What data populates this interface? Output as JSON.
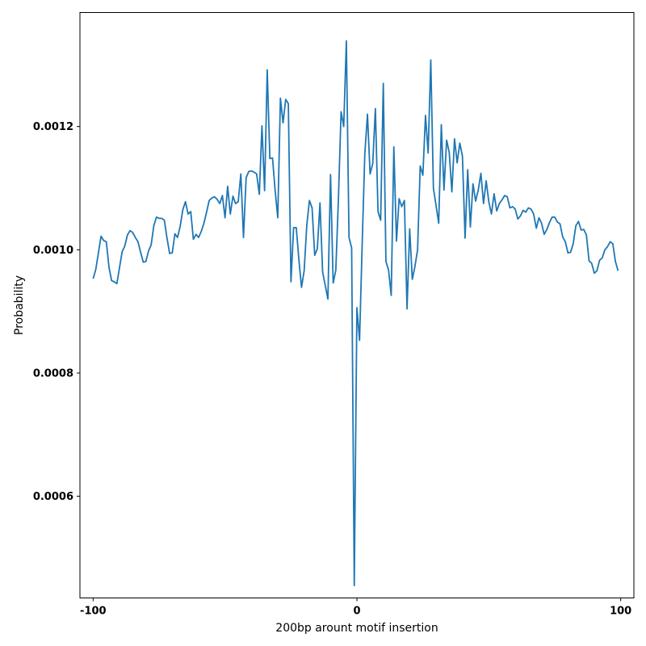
{
  "chart_data": {
    "type": "line",
    "title": "",
    "xlabel": "200bp arount motif insertion",
    "ylabel": "Probability",
    "xlim": [
      -105,
      105
    ],
    "ylim": [
      0.000435,
      0.001385
    ],
    "xticks": [
      -100,
      0,
      100
    ],
    "xtick_labels": [
      "-100",
      "0",
      "100"
    ],
    "yticks": [
      0.0006,
      0.0008,
      0.001,
      0.0012
    ],
    "ytick_labels": [
      "0.0006",
      "0.0008",
      "0.0010",
      "0.0012"
    ],
    "grid": false,
    "legend": "none",
    "color": "#1f77b4",
    "x": [
      -100,
      -99,
      -98,
      -97,
      -96,
      -95,
      -94,
      -93,
      -92,
      -91,
      -90,
      -89,
      -88,
      -87,
      -86,
      -85,
      -84,
      -83,
      -82,
      -81,
      -80,
      -79,
      -78,
      -77,
      -76,
      -75,
      -74,
      -73,
      -72,
      -71,
      -70,
      -69,
      -68,
      -67,
      -66,
      -65,
      -64,
      -63,
      -62,
      -61,
      -60,
      -59,
      -58,
      -57,
      -56,
      -55,
      -54,
      -53,
      -52,
      -51,
      -50,
      -49,
      -48,
      -47,
      -46,
      -45,
      -44,
      -43,
      -42,
      -41,
      -40,
      -39,
      -38,
      -37,
      -36,
      -35,
      -34,
      -33,
      -32,
      -31,
      -30,
      -29,
      -28,
      -27,
      -26,
      -25,
      -24,
      -23,
      -22,
      -21,
      -20,
      -19,
      -18,
      -17,
      -16,
      -15,
      -14,
      -13,
      -12,
      -11,
      -10,
      -9,
      -8,
      -7,
      -6,
      -5,
      -4,
      -3,
      -2,
      -1,
      0,
      1,
      2,
      3,
      4,
      5,
      6,
      7,
      8,
      9,
      10,
      11,
      12,
      13,
      14,
      15,
      16,
      17,
      18,
      19,
      20,
      21,
      22,
      23,
      24,
      25,
      26,
      27,
      28,
      29,
      30,
      31,
      32,
      33,
      34,
      35,
      36,
      37,
      38,
      39,
      40,
      41,
      42,
      43,
      44,
      45,
      46,
      47,
      48,
      49,
      50,
      51,
      52,
      53,
      54,
      55,
      56,
      57,
      58,
      59,
      60,
      61,
      62,
      63,
      64,
      65,
      66,
      67,
      68,
      69,
      70,
      71,
      72,
      73,
      74,
      75,
      76,
      77,
      78,
      79,
      80,
      81,
      82,
      83,
      84,
      85,
      86,
      87,
      88,
      89,
      90,
      91,
      92,
      93,
      94,
      95,
      96,
      97,
      98,
      99
    ],
    "y": [
      0.000953,
      0.000968,
      0.000995,
      0.001022,
      0.001015,
      0.001013,
      0.000972,
      0.00095,
      0.000948,
      0.000945,
      0.000971,
      0.000997,
      0.001006,
      0.001024,
      0.001031,
      0.001028,
      0.00102,
      0.001013,
      0.000996,
      0.00098,
      0.000981,
      0.000998,
      0.001008,
      0.001039,
      0.001053,
      0.001051,
      0.001051,
      0.001048,
      0.001019,
      0.000994,
      0.000995,
      0.001026,
      0.00102,
      0.001038,
      0.001065,
      0.001078,
      0.001058,
      0.001062,
      0.001017,
      0.001025,
      0.00102,
      0.00103,
      0.001043,
      0.001061,
      0.00108,
      0.001084,
      0.001086,
      0.001082,
      0.001075,
      0.001088,
      0.001052,
      0.001103,
      0.001058,
      0.001087,
      0.001075,
      0.001078,
      0.001123,
      0.00102,
      0.001117,
      0.001127,
      0.001128,
      0.001126,
      0.001123,
      0.00109,
      0.001201,
      0.001096,
      0.001292,
      0.001148,
      0.001149,
      0.001096,
      0.001052,
      0.001246,
      0.001206,
      0.001244,
      0.001237,
      0.000948,
      0.001036,
      0.001036,
      0.000984,
      0.000939,
      0.000966,
      0.00104,
      0.00108,
      0.001068,
      0.000991,
      0.001002,
      0.001076,
      0.000964,
      0.000942,
      0.00092,
      0.001122,
      0.000946,
      0.000967,
      0.001084,
      0.001224,
      0.0012,
      0.001339,
      0.00102,
      0.001003,
      0.000455,
      0.000906,
      0.000853,
      0.00101,
      0.001156,
      0.00122,
      0.001123,
      0.00114,
      0.001229,
      0.001062,
      0.001048,
      0.00127,
      0.000981,
      0.000967,
      0.000926,
      0.001167,
      0.001014,
      0.001083,
      0.00107,
      0.00108,
      0.000904,
      0.001034,
      0.000952,
      0.000973,
      0.001,
      0.001136,
      0.001121,
      0.001218,
      0.001157,
      0.001308,
      0.0011,
      0.001072,
      0.001043,
      0.001203,
      0.001097,
      0.001178,
      0.001158,
      0.001094,
      0.00118,
      0.001141,
      0.001173,
      0.001152,
      0.001019,
      0.00113,
      0.001037,
      0.001107,
      0.001079,
      0.001097,
      0.001124,
      0.001075,
      0.001112,
      0.001078,
      0.001058,
      0.001091,
      0.001063,
      0.001075,
      0.001081,
      0.001088,
      0.001086,
      0.001068,
      0.00107,
      0.001066,
      0.00105,
      0.001055,
      0.001064,
      0.001061,
      0.001068,
      0.001066,
      0.001058,
      0.001035,
      0.001052,
      0.001043,
      0.001025,
      0.001033,
      0.001044,
      0.001053,
      0.001053,
      0.001045,
      0.001042,
      0.001021,
      0.001013,
      0.000995,
      0.000996,
      0.00101,
      0.001039,
      0.001046,
      0.001032,
      0.001033,
      0.001024,
      0.000982,
      0.000978,
      0.000962,
      0.000966,
      0.000983,
      0.000987,
      0.001,
      0.001005,
      0.001013,
      0.00101,
      0.000981,
      0.000966
    ]
  }
}
